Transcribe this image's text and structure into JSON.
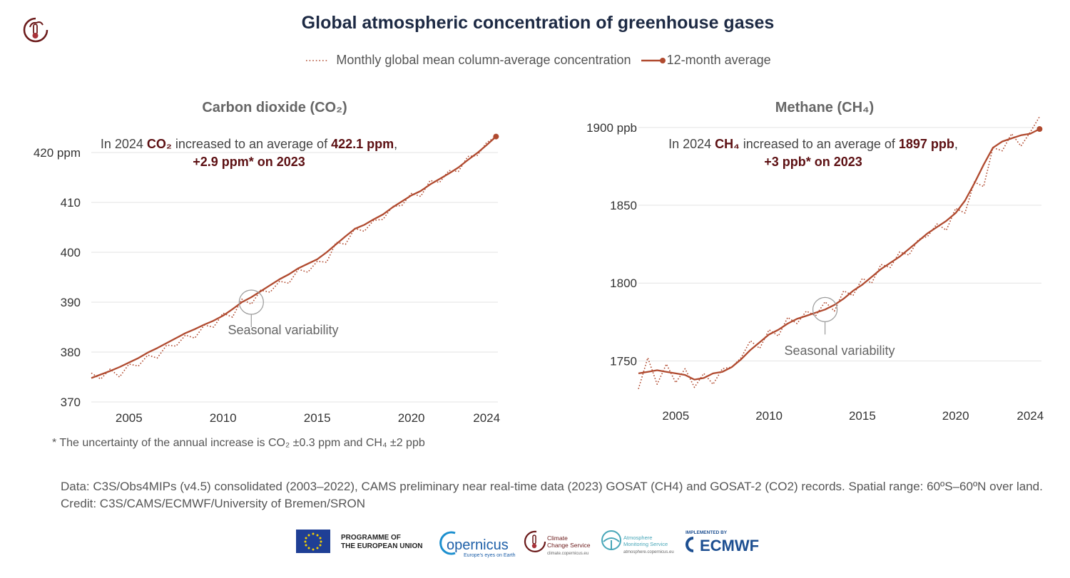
{
  "title": "Global atmospheric concentration of greenhouse gases",
  "legend": {
    "monthly": "Monthly global mean column-average concentration",
    "average": "12-month average"
  },
  "colors": {
    "series": "#b04a2f",
    "title": "#1d2a44",
    "emphasis": "#5c0f12",
    "grid": "#e3e3e3",
    "circle": "#9a9a9a"
  },
  "co2": {
    "title": "Carbon dioxide (CO₂)",
    "annotation": {
      "prefix": "In 2024 ",
      "gas": "CO₂",
      "middle": " increased to an average of ",
      "value": "422.1 ppm",
      "suffix": ",",
      "change": "+2.9 ppm* on 2023"
    },
    "seasonal_label": "Seasonal variability"
  },
  "ch4": {
    "title": "Methane (CH₄)",
    "annotation": {
      "prefix": "In 2024 ",
      "gas": "CH₄",
      "middle": " increased to an average of ",
      "value": "1897 ppb",
      "suffix": ",",
      "change": "+3 ppb* on 2023"
    },
    "seasonal_label": "Seasonal variability"
  },
  "footnote": "* The uncertainty of the annual increase is CO₂ ±0.3 ppm and CH₄ ±2 ppb",
  "sources": {
    "data": "Data: C3S/Obs4MIPs (v4.5) consolidated (2003–2022), CAMS preliminary near real-time data (2023) GOSAT (CH4) and GOSAT-2 (CO2) records. Spatial range: 60ºS–60ºN over land.",
    "credit": "Credit: C3S/CAMS/ECMWF/University of Bremen/SRON"
  },
  "logos": {
    "programme": [
      "PROGRAMME OF",
      "THE EUROPEAN UNION"
    ],
    "copernicus": "opernicus",
    "copernicus_tagline": "Europe's eyes on Earth",
    "c3s": [
      "Climate",
      "Change Service"
    ],
    "c3s_url": "climate.copernicus.eu",
    "cams": [
      "Atmosphere",
      "Monitoring Service"
    ],
    "cams_url": "atmosphere.copernicus.eu",
    "ecmwf_top": "IMPLEMENTED BY",
    "ecmwf": "ECMWF"
  },
  "chart_data": [
    {
      "type": "line",
      "title": "Carbon dioxide (CO₂)",
      "xlim": [
        2003,
        2024.6
      ],
      "ylim": [
        370,
        425
      ],
      "x_ticks": [
        2005,
        2010,
        2015,
        2020,
        2024
      ],
      "y_ticks": [
        370,
        380,
        390,
        400,
        410,
        420
      ],
      "y_tick_labels": [
        "370",
        "380",
        "390",
        "400",
        "410",
        "420 ppm"
      ],
      "x": [
        2003.0,
        2003.5,
        2004.0,
        2004.5,
        2005.0,
        2005.5,
        2006.0,
        2006.5,
        2007.0,
        2007.5,
        2008.0,
        2008.5,
        2009.0,
        2009.5,
        2010.0,
        2010.5,
        2011.0,
        2011.5,
        2012.0,
        2012.5,
        2013.0,
        2013.5,
        2014.0,
        2014.5,
        2015.0,
        2015.5,
        2016.0,
        2016.5,
        2017.0,
        2017.5,
        2018.0,
        2018.5,
        2019.0,
        2019.5,
        2020.0,
        2020.5,
        2021.0,
        2021.5,
        2022.0,
        2022.5,
        2023.0,
        2023.5,
        2024.0,
        2024.5
      ],
      "series": [
        {
          "name": "Monthly global mean column-average concentration",
          "style": "dotted",
          "values": [
            375.8,
            374.6,
            376.6,
            375.0,
            377.6,
            377.2,
            379.4,
            378.8,
            381.4,
            381.2,
            383.4,
            382.8,
            385.4,
            385.0,
            387.8,
            387.0,
            390.6,
            389.6,
            392.4,
            392.0,
            394.2,
            393.8,
            396.6,
            396.0,
            398.2,
            398.0,
            402.0,
            401.6,
            404.8,
            404.2,
            406.4,
            406.6,
            409.2,
            409.4,
            411.8,
            411.2,
            414.4,
            414.0,
            416.4,
            416.2,
            419.2,
            419.4,
            422.0,
            423.2
          ]
        },
        {
          "name": "12-month average",
          "style": "solid",
          "values": [
            374.8,
            375.5,
            376.2,
            377.0,
            377.9,
            378.8,
            379.9,
            380.8,
            381.8,
            382.8,
            383.8,
            384.6,
            385.5,
            386.3,
            387.3,
            388.6,
            390.0,
            391.0,
            392.2,
            393.4,
            394.6,
            395.6,
            396.8,
            397.7,
            398.6,
            400.0,
            401.6,
            403.2,
            404.7,
            405.5,
            406.6,
            407.6,
            409.0,
            410.2,
            411.4,
            412.3,
            413.6,
            414.7,
            415.8,
            417.0,
            418.5,
            419.9,
            421.5,
            423.2
          ]
        }
      ],
      "annotation": "In 2024 CO₂ increased to an average of 422.1 ppm, +2.9 ppm* on 2023",
      "callout": {
        "label": "Seasonal variability",
        "x": 2011.5,
        "y": 390
      }
    },
    {
      "type": "line",
      "title": "Methane (CH₄)",
      "xlim": [
        2003,
        2024.6
      ],
      "ylim": [
        1725,
        1910
      ],
      "x_ticks": [
        2005,
        2010,
        2015,
        2020,
        2024
      ],
      "y_ticks": [
        1750,
        1800,
        1850,
        1900
      ],
      "y_tick_labels": [
        "1750",
        "1800",
        "1850",
        "1900 ppb"
      ],
      "x": [
        2003.0,
        2003.5,
        2004.0,
        2004.5,
        2005.0,
        2005.5,
        2006.0,
        2006.5,
        2007.0,
        2007.5,
        2008.0,
        2008.5,
        2009.0,
        2009.5,
        2010.0,
        2010.5,
        2011.0,
        2011.5,
        2012.0,
        2012.5,
        2013.0,
        2013.5,
        2014.0,
        2014.5,
        2015.0,
        2015.5,
        2016.0,
        2016.5,
        2017.0,
        2017.5,
        2018.0,
        2018.5,
        2019.0,
        2019.5,
        2020.0,
        2020.5,
        2021.0,
        2021.5,
        2022.0,
        2022.5,
        2023.0,
        2023.5,
        2024.0,
        2024.5
      ],
      "series": [
        {
          "name": "Monthly global mean column-average concentration",
          "style": "dotted",
          "values": [
            1732,
            1752,
            1735,
            1748,
            1736,
            1745,
            1733,
            1742,
            1735,
            1745,
            1746,
            1752,
            1763,
            1758,
            1770,
            1766,
            1778,
            1774,
            1782,
            1779,
            1788,
            1782,
            1795,
            1792,
            1803,
            1800,
            1812,
            1810,
            1820,
            1818,
            1828,
            1830,
            1838,
            1834,
            1848,
            1845,
            1865,
            1862,
            1887,
            1885,
            1896,
            1888,
            1897,
            1907
          ]
        },
        {
          "name": "12-month average",
          "style": "solid",
          "values": [
            1742,
            1743,
            1744,
            1743,
            1742,
            1741,
            1738,
            1739,
            1742,
            1743,
            1746,
            1751,
            1757,
            1762,
            1767,
            1770,
            1774,
            1777,
            1779,
            1781,
            1783,
            1786,
            1790,
            1795,
            1799,
            1804,
            1809,
            1813,
            1817,
            1822,
            1827,
            1832,
            1836,
            1840,
            1845,
            1853,
            1864,
            1876,
            1887,
            1891,
            1893,
            1895,
            1896,
            1899
          ]
        }
      ],
      "annotation": "In 2024 CH₄ increased to an average of 1897 ppb, +3 ppb* on 2023",
      "callout": {
        "label": "Seasonal variability",
        "x": 2013.0,
        "y": 1783
      }
    }
  ]
}
